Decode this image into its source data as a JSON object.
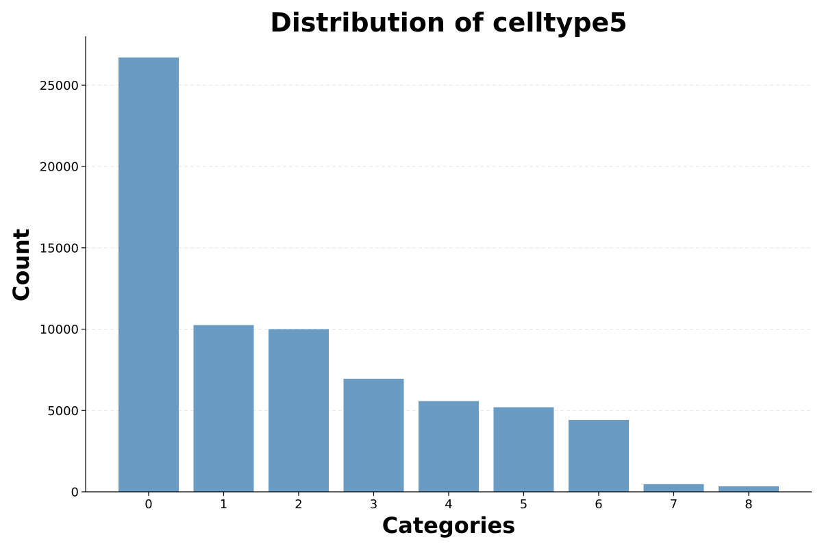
{
  "chart_data": {
    "type": "bar",
    "title": "Distribution of celltype5",
    "xlabel": "Categories",
    "ylabel": "Count",
    "categories": [
      "0",
      "1",
      "2",
      "3",
      "4",
      "5",
      "6",
      "7",
      "8"
    ],
    "values": [
      26700,
      10250,
      10000,
      6950,
      5580,
      5200,
      4420,
      470,
      340
    ],
    "ylim": [
      0,
      28000
    ],
    "yticks": [
      0,
      5000,
      10000,
      15000,
      20000,
      25000
    ],
    "grid": "y-dashed",
    "bar_color": "#6a9bc3"
  }
}
